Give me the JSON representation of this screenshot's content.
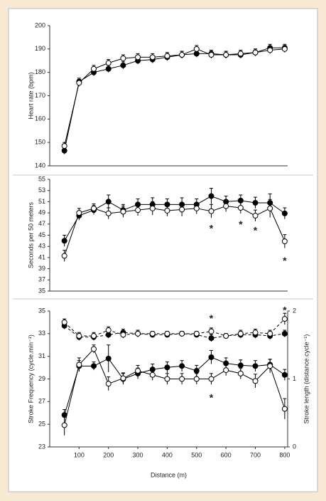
{
  "chart_data": [
    {
      "type": "line",
      "ylabel": "Heart rate (bpm)",
      "x": [
        50,
        100,
        150,
        200,
        250,
        300,
        350,
        400,
        450,
        500,
        550,
        600,
        650,
        700,
        750,
        800
      ],
      "xlim": [
        0,
        810
      ],
      "ylim": [
        140,
        200
      ],
      "yticks": [
        140,
        150,
        160,
        170,
        180,
        190,
        200
      ],
      "series": [
        {
          "color": "#000000",
          "marker_fill": "#000000",
          "dashes": false,
          "values": [
            146.5,
            176,
            180,
            181.5,
            183,
            185,
            185.5,
            186.5,
            187.5,
            188,
            188,
            187.5,
            187.5,
            188.5,
            190.5,
            190.5
          ],
          "errors": [
            1.5,
            1.5,
            1.5,
            1.5,
            1.5,
            1.5,
            1.5,
            1.5,
            1.5,
            1.5,
            1.5,
            1.5,
            1.5,
            1.5,
            1.5,
            1.5
          ]
        },
        {
          "color": "#000000",
          "marker_fill": "#ffffff",
          "dashes": false,
          "values": [
            148.5,
            175.5,
            181.5,
            184,
            186,
            186.5,
            186.5,
            187,
            187.5,
            190,
            187.5,
            187.5,
            188,
            188.5,
            189.5,
            190
          ],
          "errors": [
            1.5,
            1.5,
            1.5,
            1.5,
            1.5,
            1.5,
            1.5,
            1.5,
            1.5,
            1.5,
            1.5,
            1.5,
            1.5,
            1.5,
            1.5,
            1.5
          ]
        }
      ]
    },
    {
      "type": "line",
      "ylabel": "Seconds per 50 meters",
      "x": [
        50,
        100,
        150,
        200,
        250,
        300,
        350,
        400,
        450,
        500,
        550,
        600,
        650,
        700,
        750,
        800
      ],
      "xlim": [
        0,
        810
      ],
      "ylim": [
        35,
        55
      ],
      "yticks": [
        35,
        37,
        39,
        41,
        43,
        45,
        47,
        49,
        51,
        53,
        55
      ],
      "series": [
        {
          "color": "#000000",
          "marker_fill": "#000000",
          "dashes": false,
          "values": [
            44,
            48.5,
            49.5,
            51,
            49.5,
            50.5,
            50.5,
            50.5,
            50.5,
            50.5,
            52,
            51,
            51.2,
            50.8,
            50.8,
            48.9
          ],
          "errors": [
            1,
            0.8,
            0.8,
            1.2,
            1,
            1,
            1.2,
            1,
            1.2,
            1,
            1.4,
            1,
            1,
            1,
            1.6,
            1
          ]
        },
        {
          "color": "#000000",
          "marker_fill": "#ffffff",
          "dashes": false,
          "values": [
            41.3,
            49,
            49.8,
            48.9,
            49.2,
            49.5,
            49.8,
            49.4,
            49.6,
            49.8,
            49.3,
            50.2,
            49.9,
            48.5,
            49.8,
            43.9
          ],
          "errors": [
            1,
            0.8,
            0.8,
            1,
            1,
            1,
            1.2,
            1,
            1.2,
            1,
            1.2,
            1,
            1,
            1,
            1.6,
            1.2
          ]
        }
      ],
      "annotations": [
        {
          "text": "*",
          "x": 550,
          "y": 46.1
        },
        {
          "text": "*",
          "x": 650,
          "y": 46.8
        },
        {
          "text": "*",
          "x": 700,
          "y": 45.7
        },
        {
          "text": "*",
          "x": 800,
          "y": 40.3
        }
      ]
    },
    {
      "type": "line",
      "ylabel": "Stroke Frequency (cycle.min⁻¹)",
      "y2label": "Stroke length (distance.cycle⁻¹)",
      "xlabel": "Distance (m)",
      "x": [
        50,
        100,
        150,
        200,
        250,
        300,
        350,
        400,
        450,
        500,
        550,
        600,
        650,
        700,
        750,
        800
      ],
      "xlim": [
        0,
        810
      ],
      "xticks": [
        100,
        200,
        300,
        400,
        500,
        600,
        700,
        800
      ],
      "ylim": [
        23,
        35
      ],
      "yticks": [
        23,
        25,
        27,
        29,
        31,
        33,
        35
      ],
      "y2lim": [
        0,
        2
      ],
      "y2ticks": [
        0,
        1,
        2
      ],
      "series": [
        {
          "color": "#000000",
          "marker_fill": "#000000",
          "dashes": true,
          "values": [
            33.7,
            32.7,
            32.7,
            32.9,
            33.1,
            33.0,
            32.9,
            32.9,
            33.0,
            32.9,
            32.6,
            32.8,
            32.9,
            32.9,
            32.8,
            33.0
          ],
          "errors": [
            0.3,
            0.3,
            0.3,
            0.3,
            0.3,
            0.3,
            0.2,
            0.2,
            0.2,
            0.2,
            0.3,
            0.2,
            0.3,
            0.3,
            0.3,
            0.3
          ]
        },
        {
          "color": "#000000",
          "marker_fill": "#ffffff",
          "dashes": true,
          "values": [
            34.0,
            32.8,
            32.8,
            33.3,
            32.9,
            33.0,
            33.0,
            33.0,
            33.0,
            33.0,
            33.2,
            32.8,
            33.0,
            33.1,
            33.0,
            34.3
          ],
          "errors": [
            0.3,
            0.3,
            0.3,
            0.3,
            0.3,
            0.3,
            0.2,
            0.2,
            0.2,
            0.2,
            0.3,
            0.2,
            0.3,
            0.3,
            0.3,
            0.5
          ]
        },
        {
          "color": "#000000",
          "marker_fill": "#000000",
          "dashes": false,
          "axis": "y2",
          "values": [
            0.47,
            1.19,
            1.19,
            1.3,
            1.0,
            1.08,
            1.14,
            1.17,
            1.19,
            1.12,
            1.32,
            1.23,
            1.2,
            1.19,
            1.21,
            1.06
          ],
          "errors": [
            0.08,
            0.08,
            0.06,
            0.2,
            0.08,
            0.08,
            0.08,
            0.08,
            0.08,
            0.08,
            0.1,
            0.08,
            0.08,
            0.08,
            0.08,
            0.08
          ]
        },
        {
          "color": "#000000",
          "marker_fill": "#ffffff",
          "dashes": false,
          "axis": "y2",
          "values": [
            0.32,
            1.21,
            1.44,
            0.93,
            1.01,
            1.12,
            1.06,
            1.0,
            1.0,
            1.0,
            1.0,
            1.13,
            1.08,
            0.97,
            1.19,
            0.56
          ],
          "errors": [
            0.15,
            0.1,
            0.06,
            0.1,
            0.08,
            0.08,
            0.08,
            0.08,
            0.08,
            0.08,
            0.08,
            0.08,
            0.08,
            0.1,
            0.1,
            0.15
          ]
        }
      ],
      "annotations": [
        {
          "text": "*",
          "x": 550,
          "y": 34.3
        },
        {
          "text": "*",
          "x": 550,
          "y": 27.3
        },
        {
          "text": "*",
          "x": 800,
          "y": 35.0
        }
      ]
    }
  ]
}
